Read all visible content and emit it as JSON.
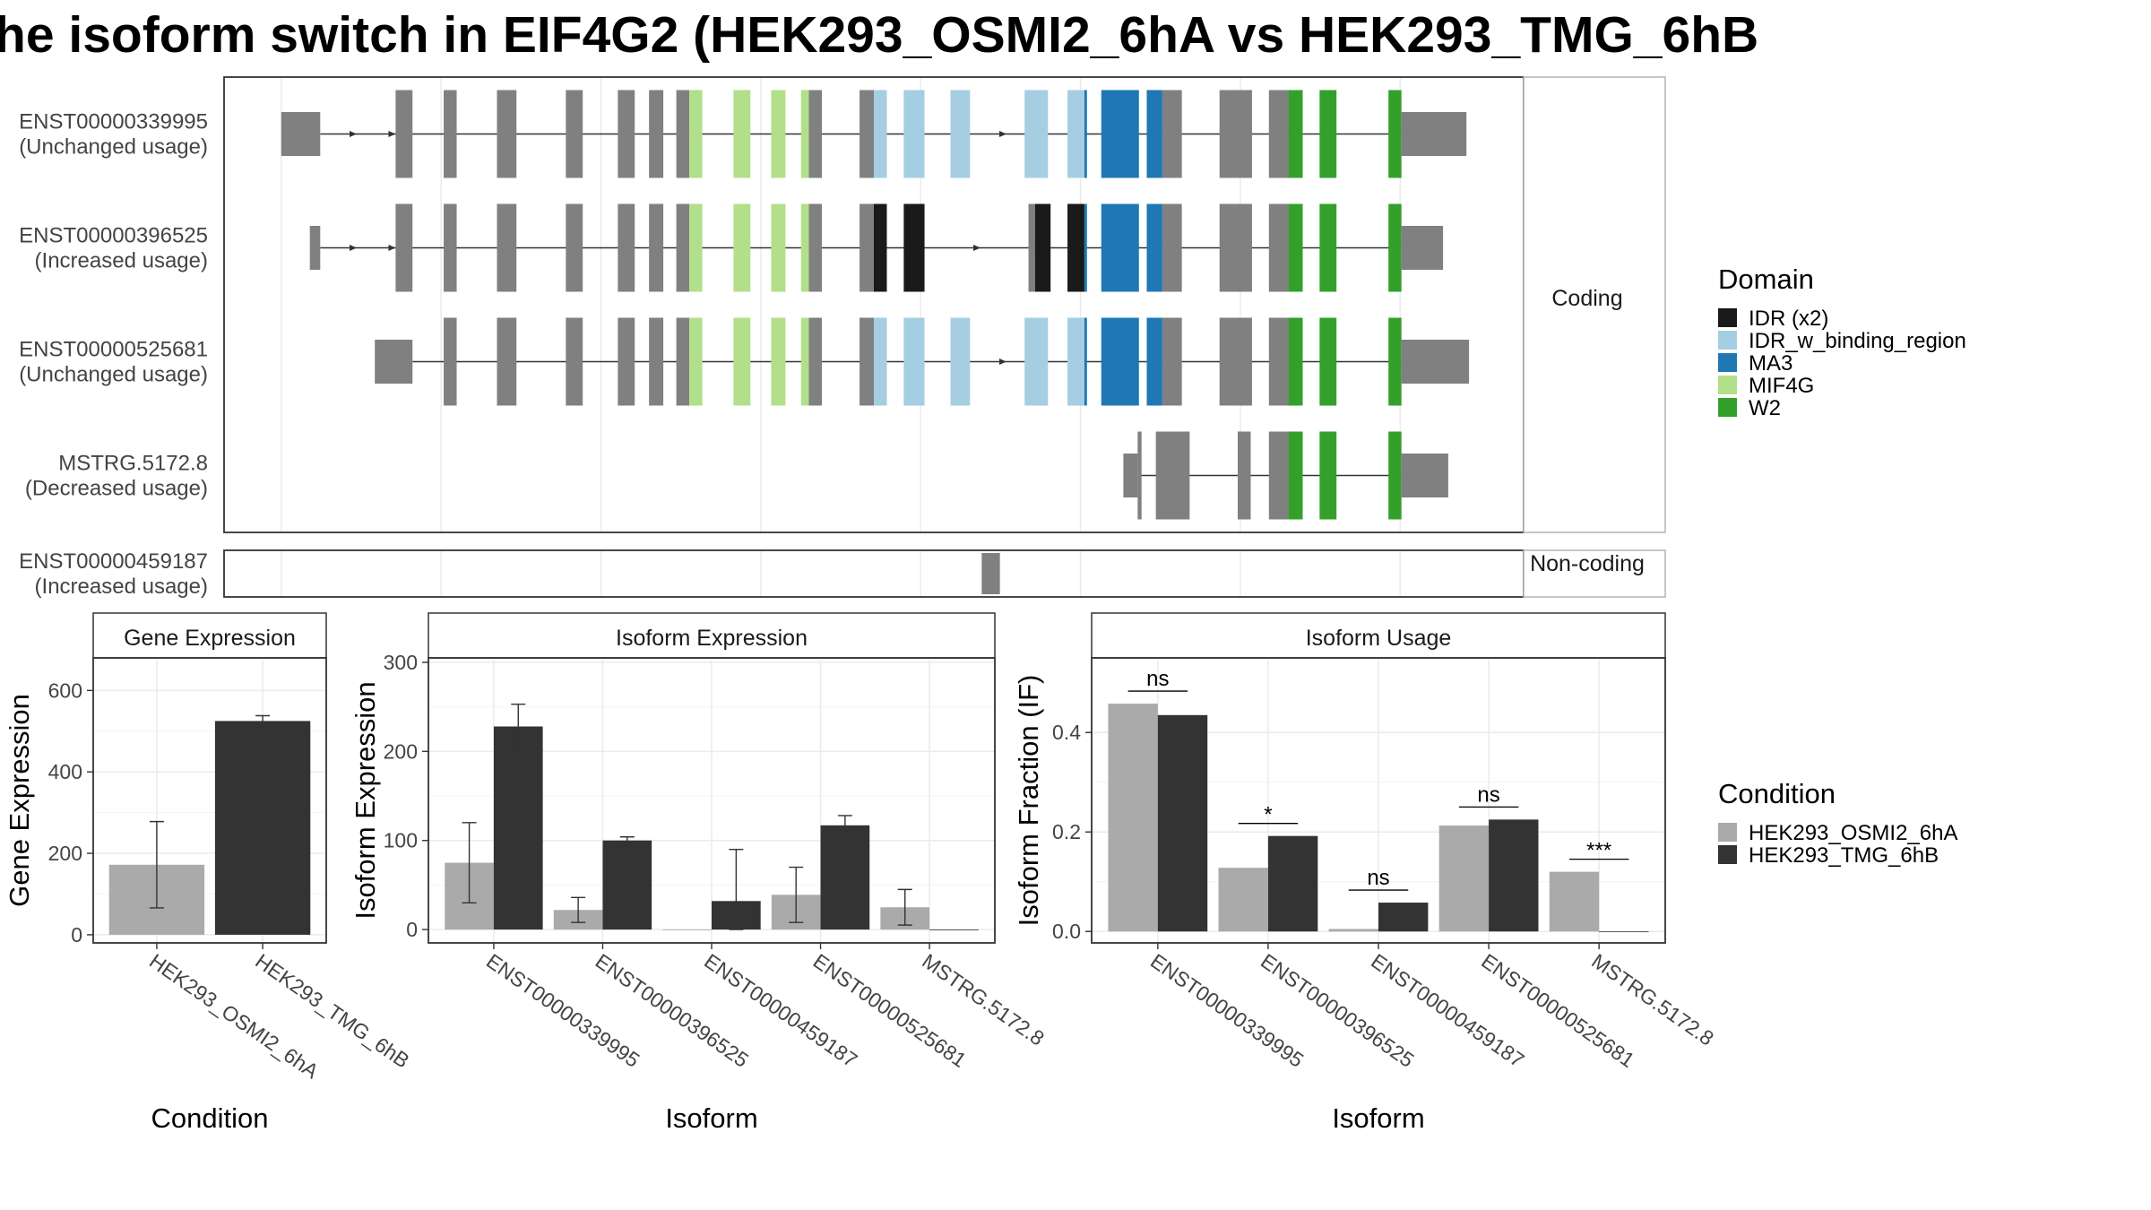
{
  "title": "he isoform switch in EIF4G2 (HEK293_OSMI2_6hA vs HEK293_TMG_6hB",
  "colors": {
    "exon": "#808080",
    "IDR (x2)": "#1a1a1a",
    "IDR_w_binding_region": "#a6cee3",
    "MA3": "#1f78b4",
    "MIF4G": "#b2df8a",
    "W2": "#33a02c",
    "cond_A": "#aaaaaa",
    "cond_B": "#333333"
  },
  "structure": {
    "panel_coding_label": "Coding",
    "panel_noncoding_label": "Non-coding",
    "transcripts": [
      {
        "id": "ENST00000339995",
        "status": "(Unchanged usage)",
        "panel": "Coding",
        "exons": [
          [
            0.044,
            0.074,
            "u"
          ],
          [
            0.132,
            0.145,
            "c"
          ],
          [
            0.169,
            0.179,
            "c"
          ],
          [
            0.21,
            0.225,
            "c"
          ],
          [
            0.263,
            0.276,
            "c"
          ],
          [
            0.303,
            0.316,
            "c"
          ],
          [
            0.327,
            0.338,
            "c"
          ],
          [
            0.348,
            0.358,
            "c"
          ],
          [
            0.358,
            0.368,
            "MIF4G"
          ],
          [
            0.392,
            0.405,
            "MIF4G"
          ],
          [
            0.421,
            0.432,
            "MIF4G"
          ],
          [
            0.444,
            0.45,
            "MIF4G"
          ],
          [
            0.45,
            0.46,
            "c"
          ],
          [
            0.489,
            0.5,
            "c"
          ],
          [
            0.5,
            0.51,
            "IDR_w_binding_region"
          ],
          [
            0.523,
            0.539,
            "IDR_w_binding_region"
          ],
          [
            0.559,
            0.574,
            "IDR_w_binding_region"
          ],
          [
            0.616,
            0.634,
            "IDR_w_binding_region"
          ],
          [
            0.649,
            0.662,
            "IDR_w_binding_region"
          ],
          [
            0.662,
            0.664,
            "MA3"
          ],
          [
            0.675,
            0.704,
            "MA3"
          ],
          [
            0.71,
            0.722,
            "MA3"
          ],
          [
            0.722,
            0.737,
            "c"
          ],
          [
            0.766,
            0.791,
            "c"
          ],
          [
            0.804,
            0.819,
            "c"
          ],
          [
            0.819,
            0.83,
            "W2"
          ],
          [
            0.843,
            0.856,
            "W2"
          ],
          [
            0.896,
            0.906,
            "W2"
          ],
          [
            0.906,
            0.956,
            "u"
          ]
        ],
        "arrows": [
          0.1,
          0.13,
          0.6,
          0.62
        ]
      },
      {
        "id": "ENST00000396525",
        "status": "(Increased usage)",
        "panel": "Coding",
        "exons": [
          [
            0.066,
            0.074,
            "u"
          ],
          [
            0.132,
            0.145,
            "c"
          ],
          [
            0.169,
            0.179,
            "c"
          ],
          [
            0.21,
            0.225,
            "c"
          ],
          [
            0.263,
            0.276,
            "c"
          ],
          [
            0.303,
            0.316,
            "c"
          ],
          [
            0.327,
            0.338,
            "c"
          ],
          [
            0.348,
            0.358,
            "c"
          ],
          [
            0.358,
            0.368,
            "MIF4G"
          ],
          [
            0.392,
            0.405,
            "MIF4G"
          ],
          [
            0.421,
            0.432,
            "MIF4G"
          ],
          [
            0.444,
            0.45,
            "MIF4G"
          ],
          [
            0.45,
            0.46,
            "c"
          ],
          [
            0.489,
            0.5,
            "c"
          ],
          [
            0.5,
            0.51,
            "IDR (x2)"
          ],
          [
            0.523,
            0.539,
            "IDR (x2)"
          ],
          [
            0.619,
            0.624,
            "c"
          ],
          [
            0.624,
            0.636,
            "IDR (x2)"
          ],
          [
            0.649,
            0.662,
            "IDR (x2)"
          ],
          [
            0.662,
            0.664,
            "MA3"
          ],
          [
            0.675,
            0.704,
            "MA3"
          ],
          [
            0.71,
            0.722,
            "MA3"
          ],
          [
            0.722,
            0.737,
            "c"
          ],
          [
            0.766,
            0.791,
            "c"
          ],
          [
            0.804,
            0.819,
            "c"
          ],
          [
            0.819,
            0.83,
            "W2"
          ],
          [
            0.843,
            0.856,
            "W2"
          ],
          [
            0.896,
            0.906,
            "W2"
          ],
          [
            0.906,
            0.938,
            "u"
          ]
        ],
        "arrows": [
          0.1,
          0.13,
          0.58
        ]
      },
      {
        "id": "ENST00000525681",
        "status": "(Unchanged usage)",
        "panel": "Coding",
        "exons": [
          [
            0.116,
            0.145,
            "u"
          ],
          [
            0.169,
            0.179,
            "c"
          ],
          [
            0.21,
            0.225,
            "c"
          ],
          [
            0.263,
            0.276,
            "c"
          ],
          [
            0.303,
            0.316,
            "c"
          ],
          [
            0.327,
            0.338,
            "c"
          ],
          [
            0.348,
            0.358,
            "c"
          ],
          [
            0.358,
            0.368,
            "MIF4G"
          ],
          [
            0.392,
            0.405,
            "MIF4G"
          ],
          [
            0.421,
            0.432,
            "MIF4G"
          ],
          [
            0.444,
            0.45,
            "MIF4G"
          ],
          [
            0.45,
            0.46,
            "c"
          ],
          [
            0.489,
            0.5,
            "c"
          ],
          [
            0.5,
            0.51,
            "IDR_w_binding_region"
          ],
          [
            0.523,
            0.539,
            "IDR_w_binding_region"
          ],
          [
            0.559,
            0.574,
            "IDR_w_binding_region"
          ],
          [
            0.616,
            0.634,
            "IDR_w_binding_region"
          ],
          [
            0.649,
            0.662,
            "IDR_w_binding_region"
          ],
          [
            0.662,
            0.664,
            "MA3"
          ],
          [
            0.675,
            0.704,
            "MA3"
          ],
          [
            0.71,
            0.722,
            "MA3"
          ],
          [
            0.722,
            0.737,
            "c"
          ],
          [
            0.766,
            0.791,
            "c"
          ],
          [
            0.804,
            0.819,
            "c"
          ],
          [
            0.819,
            0.83,
            "W2"
          ],
          [
            0.843,
            0.856,
            "W2"
          ],
          [
            0.896,
            0.906,
            "W2"
          ],
          [
            0.906,
            0.958,
            "u"
          ]
        ],
        "arrows": [
          0.6,
          0.62
        ]
      },
      {
        "id": "MSTRG.5172.8",
        "status": "(Decreased usage)",
        "panel": "Coding",
        "exons": [
          [
            0.692,
            0.703,
            "u"
          ],
          [
            0.703,
            0.706,
            "c"
          ],
          [
            0.717,
            0.743,
            "c"
          ],
          [
            0.78,
            0.79,
            "c"
          ],
          [
            0.804,
            0.819,
            "c"
          ],
          [
            0.819,
            0.83,
            "W2"
          ],
          [
            0.843,
            0.856,
            "W2"
          ],
          [
            0.896,
            0.906,
            "W2"
          ],
          [
            0.906,
            0.942,
            "u"
          ]
        ],
        "arrows": []
      },
      {
        "id": "ENST00000459187",
        "status": "(Increased usage)",
        "panel": "Non-coding",
        "exons": [
          [
            0.583,
            0.597,
            "c"
          ]
        ],
        "arrows": []
      }
    ]
  },
  "legend_domain": {
    "title": "Domain",
    "items": [
      "IDR (x2)",
      "IDR_w_binding_region",
      "MA3",
      "MIF4G",
      "W2"
    ]
  },
  "legend_condition": {
    "title": "Condition",
    "items": [
      "HEK293_OSMI2_6hA",
      "HEK293_TMG_6hB"
    ]
  },
  "chart_data": [
    {
      "type": "bar",
      "title": "Gene Expression",
      "xlabel": "Condition",
      "ylabel": "Gene Expression",
      "categories": [
        "HEK293_OSMI2_6hA",
        "HEK293_TMG_6hB"
      ],
      "values": [
        172,
        525
      ],
      "errors": [
        [
          66,
          278
        ],
        [
          512,
          538
        ]
      ],
      "ylim": [
        -20,
        680
      ],
      "yticks": [
        0,
        200,
        400,
        600
      ]
    },
    {
      "type": "bar",
      "title": "Isoform Expression",
      "xlabel": "Isoform",
      "ylabel": "Isoform Expression",
      "categories": [
        "ENST00000339995",
        "ENST00000396525",
        "ENST00000459187",
        "ENST00000525681",
        "MSTRG.5172.8"
      ],
      "series": [
        {
          "name": "HEK293_OSMI2_6hA",
          "values": [
            75,
            22,
            0,
            39,
            25
          ],
          "errors": [
            [
              30,
              120
            ],
            [
              8,
              36
            ],
            [
              0,
              0
            ],
            [
              8,
              70
            ],
            [
              5,
              45
            ]
          ]
        },
        {
          "name": "HEK293_TMG_6hB",
          "values": [
            228,
            100,
            32,
            117,
            0
          ],
          "errors": [
            [
              200,
              253
            ],
            [
              96,
              104
            ],
            [
              0,
              90
            ],
            [
              106,
              128
            ],
            [
              0,
              0
            ]
          ]
        }
      ],
      "ylim": [
        -15,
        305
      ],
      "yticks": [
        0,
        100,
        200,
        300
      ]
    },
    {
      "type": "bar",
      "title": "Isoform Usage",
      "xlabel": "Isoform",
      "ylabel": "Isoform Fraction (IF)",
      "categories": [
        "ENST00000339995",
        "ENST00000396525",
        "ENST00000459187",
        "ENST00000525681",
        "MSTRG.5172.8"
      ],
      "series": [
        {
          "name": "HEK293_OSMI2_6hA",
          "values": [
            0.458,
            0.128,
            0.005,
            0.213,
            0.12
          ]
        },
        {
          "name": "HEK293_TMG_6hB",
          "values": [
            0.435,
            0.192,
            0.058,
            0.225,
            0
          ]
        }
      ],
      "significance": [
        "ns",
        "*",
        "ns",
        "ns",
        "***"
      ],
      "ylim": [
        -0.023,
        0.55
      ],
      "yticks": [
        0.0,
        0.2,
        0.4
      ],
      "ytick_labels": [
        "0.0",
        "0.2",
        "0.4"
      ]
    }
  ]
}
